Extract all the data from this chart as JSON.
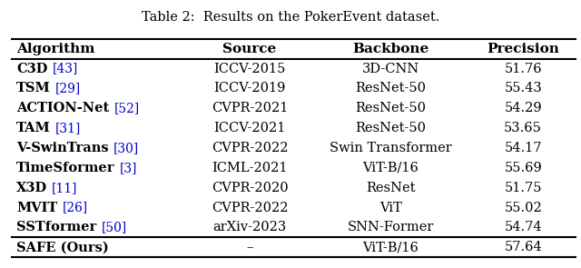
{
  "title": "Table 2:  Results on the PokerEvent dataset.",
  "headers": [
    "Algorithm",
    "Source",
    "Backbone",
    "Precision"
  ],
  "rows": [
    [
      "C3D",
      "43",
      "ICCV-2015",
      "3D-CNN",
      "51.76"
    ],
    [
      "TSM",
      "29",
      "ICCV-2019",
      "ResNet-50",
      "55.43"
    ],
    [
      "ACTION-Net",
      "52",
      "CVPR-2021",
      "ResNet-50",
      "54.29"
    ],
    [
      "TAM",
      "31",
      "ICCV-2021",
      "ResNet-50",
      "53.65"
    ],
    [
      "V-SwinTrans",
      "30",
      "CVPR-2022",
      "Swin Transformer",
      "54.17"
    ],
    [
      "TimeSformer",
      "3",
      "ICML-2021",
      "ViT-B/16",
      "55.69"
    ],
    [
      "X3D",
      "11",
      "CVPR-2020",
      "ResNet",
      "51.75"
    ],
    [
      "MVIT",
      "26",
      "CVPR-2022",
      "ViT",
      "55.02"
    ],
    [
      "SSTformer",
      "50",
      "arXiv-2023",
      "SNN-Former",
      "54.74"
    ]
  ],
  "last_row": [
    "SAFE (Ours)",
    "–",
    "ViT-B/16",
    "57.64"
  ],
  "ref_color": "#0000cc",
  "text_color": "#000000",
  "title_fontsize": 10.5,
  "header_fontsize": 11,
  "body_fontsize": 10.5,
  "fig_width": 6.4,
  "fig_height": 2.95
}
